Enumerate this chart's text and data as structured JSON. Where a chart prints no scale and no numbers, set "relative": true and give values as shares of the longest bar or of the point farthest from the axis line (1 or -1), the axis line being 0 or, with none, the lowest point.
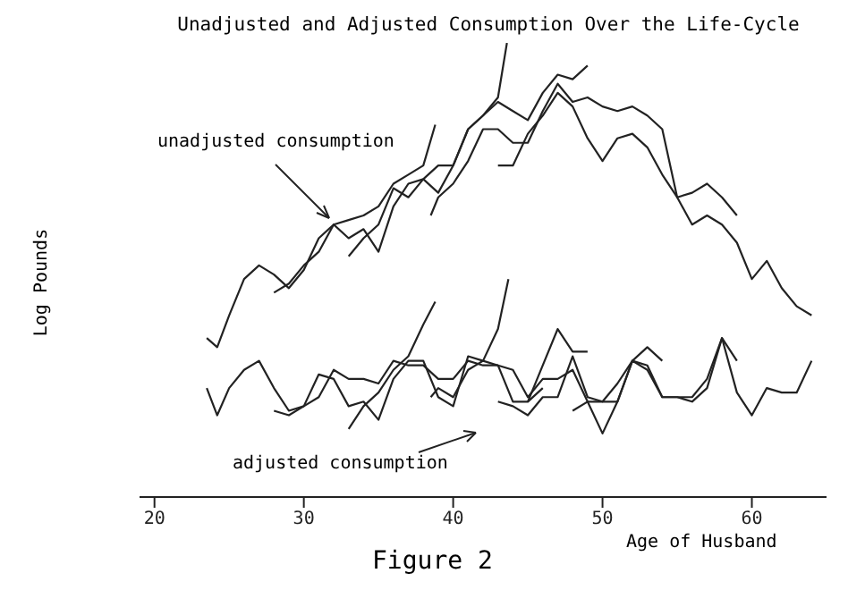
{
  "chart_data": {
    "type": "line",
    "title": "Unadjusted and Adjusted Consumption Over the Life-Cycle",
    "xlabel": "Age of Husband",
    "ylabel": "Log Pounds",
    "relative": true,
    "xlim": [
      19,
      65
    ],
    "xticks": [
      20,
      30,
      40,
      50,
      60
    ],
    "annotations": [
      "unadjusted consumption",
      "adjusted consumption",
      "Figure 2"
    ],
    "series": [
      {
        "color": "#222222",
        "x": [
          23.5,
          24.2,
          25,
          26,
          27,
          28,
          29,
          30,
          31,
          32,
          33,
          34,
          35,
          36,
          37,
          38,
          38.8
        ],
        "values": [
          0.35,
          0.33,
          0.4,
          0.48,
          0.51,
          0.49,
          0.46,
          0.5,
          0.57,
          0.6,
          0.61,
          0.62,
          0.64,
          0.69,
          0.71,
          0.73,
          0.82
        ]
      },
      {
        "color": "#222222",
        "x": [
          28,
          29,
          30,
          31,
          32,
          33,
          34,
          35,
          36,
          37,
          38,
          39,
          40,
          41,
          42,
          43,
          43.6
        ],
        "values": [
          0.45,
          0.47,
          0.51,
          0.54,
          0.6,
          0.57,
          0.59,
          0.54,
          0.64,
          0.69,
          0.7,
          0.73,
          0.73,
          0.81,
          0.84,
          0.88,
          1
        ]
      },
      {
        "color": "#222222",
        "x": [
          33,
          34,
          35,
          36,
          37,
          38,
          39,
          40,
          41,
          42,
          43,
          44,
          45,
          46,
          47,
          48,
          49
        ],
        "values": [
          0.53,
          0.57,
          0.6,
          0.68,
          0.66,
          0.7,
          0.67,
          0.73,
          0.81,
          0.84,
          0.87,
          0.85,
          0.83,
          0.89,
          0.93,
          0.92,
          0.95
        ]
      },
      {
        "color": "#222222",
        "x": [
          38.5,
          39,
          40,
          41,
          42,
          43,
          44,
          45,
          46,
          47,
          48,
          49,
          50,
          51,
          52,
          53,
          54,
          55,
          56,
          57,
          58,
          59,
          60,
          61,
          62,
          63,
          64
        ],
        "values": [
          0.62,
          0.66,
          0.69,
          0.74,
          0.81,
          0.81,
          0.78,
          0.78,
          0.85,
          0.91,
          0.87,
          0.88,
          0.86,
          0.85,
          0.86,
          0.84,
          0.81,
          0.66,
          0.6,
          0.62,
          0.6,
          0.56,
          0.48,
          0.52,
          0.46,
          0.42,
          0.4
        ]
      },
      {
        "color": "#222222",
        "x": [
          43,
          44,
          45,
          46,
          47,
          48,
          49,
          50,
          51,
          52,
          53,
          54,
          55,
          56,
          57,
          58,
          59
        ],
        "values": [
          0.73,
          0.73,
          0.8,
          0.84,
          0.89,
          0.86,
          0.79,
          0.74,
          0.79,
          0.8,
          0.77,
          0.71,
          0.66,
          0.67,
          0.69,
          0.66,
          0.62
        ]
      },
      {
        "color": "#222222",
        "x": [
          23.5,
          24.2,
          25,
          26,
          27,
          28,
          29,
          30,
          31,
          32,
          33,
          34,
          35,
          36,
          37,
          38,
          39,
          40,
          41,
          42,
          43,
          44,
          45,
          46,
          47,
          48,
          49,
          50,
          51,
          52,
          53,
          54,
          55,
          56,
          57,
          58,
          59,
          60,
          61,
          62,
          63,
          64
        ],
        "values": [
          0.24,
          0.18,
          0.24,
          0.28,
          0.3,
          0.24,
          0.19,
          0.2,
          0.22,
          0.28,
          0.26,
          0.26,
          0.25,
          0.3,
          0.29,
          0.29,
          0.26,
          0.26,
          0.3,
          0.29,
          0.29,
          0.28,
          0.22,
          0.26,
          0.26,
          0.28,
          0.21,
          0.21,
          0.25,
          0.3,
          0.28,
          0.22,
          0.22,
          0.22,
          0.26,
          0.35,
          0.23,
          0.18,
          0.24,
          0.23,
          0.23,
          0.3
        ]
      },
      {
        "color": "#222222",
        "x": [
          28,
          29,
          30,
          31,
          32,
          33,
          34,
          35,
          36,
          37,
          38,
          39,
          40,
          41,
          42,
          43,
          44,
          45,
          46
        ],
        "values": [
          0.19,
          0.18,
          0.2,
          0.27,
          0.26,
          0.2,
          0.21,
          0.17,
          0.26,
          0.3,
          0.3,
          0.22,
          0.2,
          0.31,
          0.3,
          0.29,
          0.21,
          0.21,
          0.24
        ]
      },
      {
        "color": "#222222",
        "x": [
          33,
          34,
          35,
          36,
          37,
          38,
          38.8
        ],
        "values": [
          0.15,
          0.2,
          0.23,
          0.28,
          0.31,
          0.38,
          0.43
        ]
      },
      {
        "color": "#222222",
        "x": [
          38.5,
          39,
          40,
          41,
          42,
          43,
          43.7
        ],
        "values": [
          0.22,
          0.24,
          0.22,
          0.28,
          0.3,
          0.37,
          0.48
        ]
      },
      {
        "color": "#222222",
        "x": [
          43,
          44,
          45,
          46,
          47,
          48,
          49,
          50,
          51,
          52,
          53,
          54,
          55,
          56,
          57,
          58,
          59
        ],
        "values": [
          0.21,
          0.2,
          0.18,
          0.22,
          0.22,
          0.31,
          0.22,
          0.21,
          0.21,
          0.3,
          0.29,
          0.22,
          0.22,
          0.21,
          0.24,
          0.35,
          0.3
        ]
      },
      {
        "color": "#222222",
        "x": [
          48,
          49,
          50,
          51,
          52,
          53,
          54
        ],
        "values": [
          0.19,
          0.21,
          0.14,
          0.21,
          0.3,
          0.33,
          0.3
        ]
      },
      {
        "color": "#222222",
        "x": [
          45,
          46,
          47,
          48,
          49
        ],
        "values": [
          0.21,
          0.29,
          0.37,
          0.32,
          0.32
        ]
      }
    ]
  }
}
